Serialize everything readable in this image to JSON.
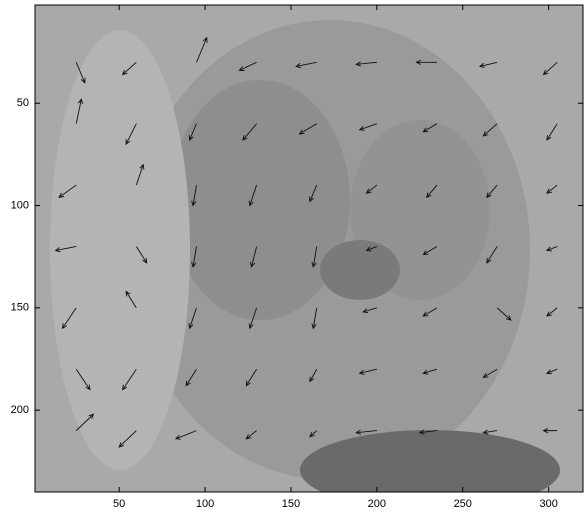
{
  "chart_data": {
    "type": "quiver",
    "xlim": [
      1,
      320
    ],
    "ylim": [
      2,
      240
    ],
    "y_reversed": true,
    "xticks": [
      50,
      100,
      150,
      200,
      250,
      300
    ],
    "yticks": [
      50,
      100,
      150,
      200
    ],
    "color": "#111111",
    "x": [
      25,
      60,
      95,
      130,
      165,
      200,
      235,
      270,
      305,
      25,
      60,
      95,
      130,
      165,
      200,
      235,
      270,
      305,
      25,
      60,
      95,
      130,
      165,
      200,
      235,
      270,
      305,
      25,
      60,
      95,
      130,
      165,
      200,
      235,
      270,
      305,
      25,
      60,
      95,
      130,
      165,
      200,
      235,
      270,
      305,
      25,
      60,
      95,
      130,
      165,
      200,
      235,
      270,
      305,
      25,
      60,
      95,
      130,
      165,
      200,
      235,
      270,
      305
    ],
    "y": [
      30,
      30,
      30,
      30,
      30,
      30,
      30,
      30,
      30,
      60,
      60,
      60,
      60,
      60,
      60,
      60,
      60,
      60,
      90,
      90,
      90,
      90,
      90,
      90,
      90,
      90,
      90,
      120,
      120,
      120,
      120,
      120,
      120,
      120,
      120,
      120,
      150,
      150,
      150,
      150,
      150,
      150,
      150,
      150,
      150,
      180,
      180,
      180,
      180,
      180,
      180,
      180,
      180,
      180,
      210,
      210,
      210,
      210,
      210,
      210,
      210,
      210,
      210
    ],
    "u": [
      5,
      -8,
      6,
      -10,
      -12,
      -12,
      -12,
      -10,
      -8,
      3,
      -6,
      -4,
      -8,
      -10,
      -10,
      -8,
      -8,
      -6,
      -10,
      4,
      -2,
      -4,
      -4,
      -6,
      -6,
      -6,
      -6,
      -12,
      6,
      -2,
      -3,
      -2,
      -6,
      -8,
      -6,
      -6,
      -8,
      -6,
      -4,
      -4,
      -2,
      -8,
      -8,
      8,
      -6,
      8,
      -8,
      -6,
      -6,
      -4,
      -10,
      -8,
      -8,
      -6,
      10,
      -10,
      -12,
      -6,
      -4,
      -12,
      -10,
      -8,
      -8
    ],
    "v": [
      10,
      6,
      -12,
      4,
      2,
      1,
      0,
      2,
      6,
      -12,
      10,
      8,
      8,
      5,
      3,
      4,
      6,
      8,
      6,
      -10,
      10,
      10,
      8,
      4,
      6,
      6,
      4,
      2,
      8,
      10,
      10,
      10,
      2,
      4,
      8,
      2,
      10,
      -8,
      10,
      10,
      10,
      2,
      4,
      6,
      4,
      10,
      10,
      8,
      8,
      6,
      2,
      2,
      4,
      2,
      -8,
      8,
      4,
      4,
      3,
      1,
      1,
      1,
      0
    ]
  }
}
